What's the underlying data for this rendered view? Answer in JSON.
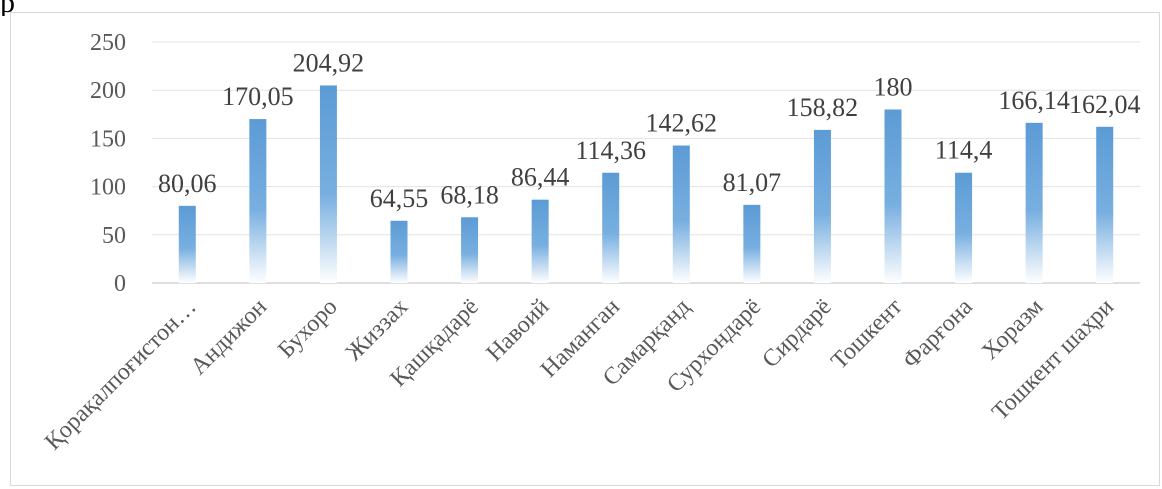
{
  "header_text": "р",
  "chart_data": {
    "type": "bar",
    "categories": [
      "Қорақалпоғистон…",
      "Андижон",
      "Бухоро",
      "Жиззах",
      "Қашқадарё",
      "Навоий",
      "Наманган",
      "Самарқанд",
      "Сурхондарё",
      "Сирдарё",
      "Тошкент",
      "Фарғона",
      "Хоразм",
      "Тошкент шаҳри"
    ],
    "values": [
      80.06,
      170.05,
      204.92,
      64.55,
      68.18,
      86.44,
      114.36,
      142.62,
      81.07,
      158.82,
      180,
      114.4,
      166.14,
      162.04
    ],
    "value_labels": [
      "80,06",
      "170,05",
      "204,92",
      "64,55",
      "68,18",
      "86,44",
      "114,36",
      "142,62",
      "81,07",
      "158,82",
      "180",
      "114,4",
      "166,14",
      "162,04"
    ],
    "yticks": [
      "0",
      "50",
      "100",
      "150",
      "200",
      "250"
    ],
    "ylim": [
      0,
      250
    ],
    "grid": true,
    "bar_color": "#5b9bd5"
  }
}
